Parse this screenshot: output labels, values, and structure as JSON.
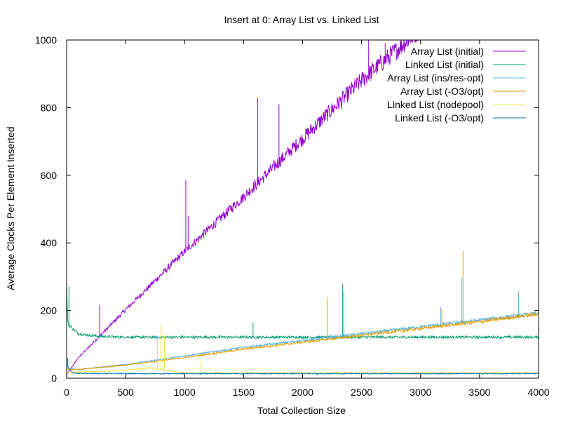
{
  "chart_data": {
    "type": "line",
    "title": "Insert at 0:  Array List vs. Linked List",
    "xlabel": "Total Collection Size",
    "ylabel": "Average Clocks Per Element Inserted",
    "xlim": [
      0,
      4000
    ],
    "ylim": [
      0,
      1000
    ],
    "xticks": [
      0,
      500,
      1000,
      1500,
      2000,
      2500,
      3000,
      3500,
      4000
    ],
    "yticks": [
      0,
      200,
      400,
      600,
      800,
      1000
    ],
    "grid": false,
    "legend_position": "top-right",
    "series": [
      {
        "name": "Array List (initial)",
        "color": "#9400d3",
        "x": [
          0,
          50,
          100,
          500,
          1000,
          1500,
          2000,
          2500,
          3000
        ],
        "y": [
          10,
          35,
          60,
          200,
          370,
          530,
          700,
          870,
          1020
        ],
        "spikes": [
          [
            280,
            215
          ],
          [
            1010,
            585
          ],
          [
            1030,
            480
          ],
          [
            1620,
            830
          ],
          [
            1800,
            810
          ],
          [
            2560,
            1040
          ],
          [
            2700,
            990
          ],
          [
            2900,
            1030
          ]
        ]
      },
      {
        "name": "Linked List (initial)",
        "color": "#009e73",
        "x": [
          0,
          10,
          50,
          100,
          200,
          300,
          500,
          1000,
          1500,
          2000,
          2500,
          3000,
          3500,
          4000
        ],
        "y": [
          270,
          160,
          145,
          130,
          125,
          122,
          120,
          120,
          120,
          120,
          120,
          120,
          120,
          120
        ],
        "spikes": [
          [
            20,
            270
          ],
          [
            1580,
            165
          ],
          [
            2340,
            280
          ]
        ]
      },
      {
        "name": "Array List (ins/res-opt)",
        "color": "#56b4e9",
        "x": [
          0,
          100,
          500,
          1000,
          1500,
          2000,
          2500,
          3000,
          3500,
          4000
        ],
        "y": [
          30,
          25,
          40,
          65,
          90,
          110,
          130,
          150,
          170,
          190
        ],
        "spikes": [
          [
            2350,
            255
          ],
          [
            3170,
            210
          ],
          [
            3350,
            300
          ],
          [
            3830,
            258
          ]
        ]
      },
      {
        "name": "Array List (-O3/opt)",
        "color": "#e69f00",
        "x": [
          0,
          100,
          500,
          1000,
          1500,
          2000,
          2500,
          3000,
          3500,
          4000
        ],
        "y": [
          25,
          25,
          38,
          60,
          85,
          105,
          125,
          145,
          165,
          188
        ],
        "spikes": [
          [
            2210,
            240
          ],
          [
            3360,
            375
          ],
          [
            3180,
            205
          ]
        ]
      },
      {
        "name": "Linked List (nodepool)",
        "color": "#f0e442",
        "x": [
          0,
          100,
          500,
          700,
          900,
          1000,
          1500,
          2000,
          2500,
          3000,
          3500,
          4000
        ],
        "y": [
          15,
          18,
          22,
          30,
          20,
          15,
          15,
          15,
          15,
          15,
          15,
          15
        ],
        "spikes": [
          [
            800,
            160
          ],
          [
            770,
            120
          ],
          [
            830,
            130
          ],
          [
            1140,
            50
          ]
        ]
      },
      {
        "name": "Linked List (-O3/opt)",
        "color": "#0072b2",
        "x": [
          0,
          50,
          100,
          500,
          1000,
          1500,
          2000,
          2500,
          3000,
          3500,
          4000
        ],
        "y": [
          40,
          15,
          14,
          13,
          13,
          13,
          13,
          13,
          13,
          13,
          13
        ],
        "spikes": [
          [
            10,
            60
          ]
        ]
      }
    ]
  }
}
